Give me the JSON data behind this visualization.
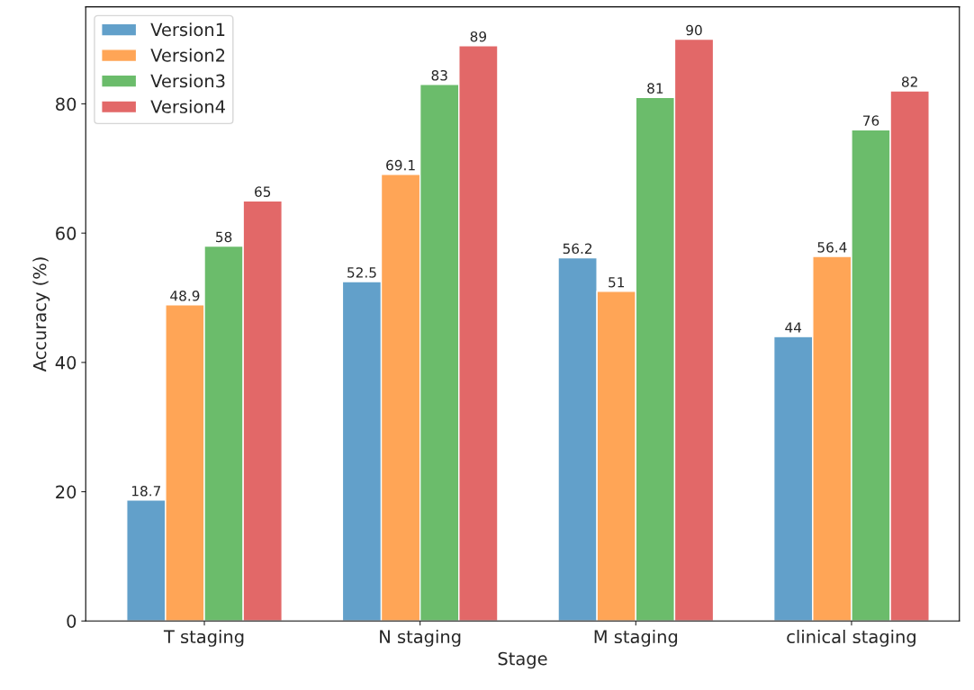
{
  "chart_data": {
    "type": "bar",
    "xlabel": "Stage",
    "ylabel": "Accuracy (%)",
    "categories": [
      "T staging",
      "N staging",
      "M staging",
      "clinical staging"
    ],
    "series": [
      {
        "name": "Version1",
        "color": "#62a0ca",
        "values": [
          18.7,
          52.5,
          56.2,
          44
        ]
      },
      {
        "name": "Version2",
        "color": "#ffa556",
        "values": [
          48.9,
          69.1,
          51,
          56.4
        ]
      },
      {
        "name": "Version3",
        "color": "#6bbc6b",
        "values": [
          58,
          83,
          81,
          76
        ]
      },
      {
        "name": "Version4",
        "color": "#e26868",
        "values": [
          65,
          89,
          90,
          82
        ]
      }
    ],
    "ylim": [
      0,
      95
    ],
    "yticks": [
      0,
      20,
      40,
      60,
      80
    ],
    "data_labels": true,
    "legend": "top left",
    "grid": false
  }
}
